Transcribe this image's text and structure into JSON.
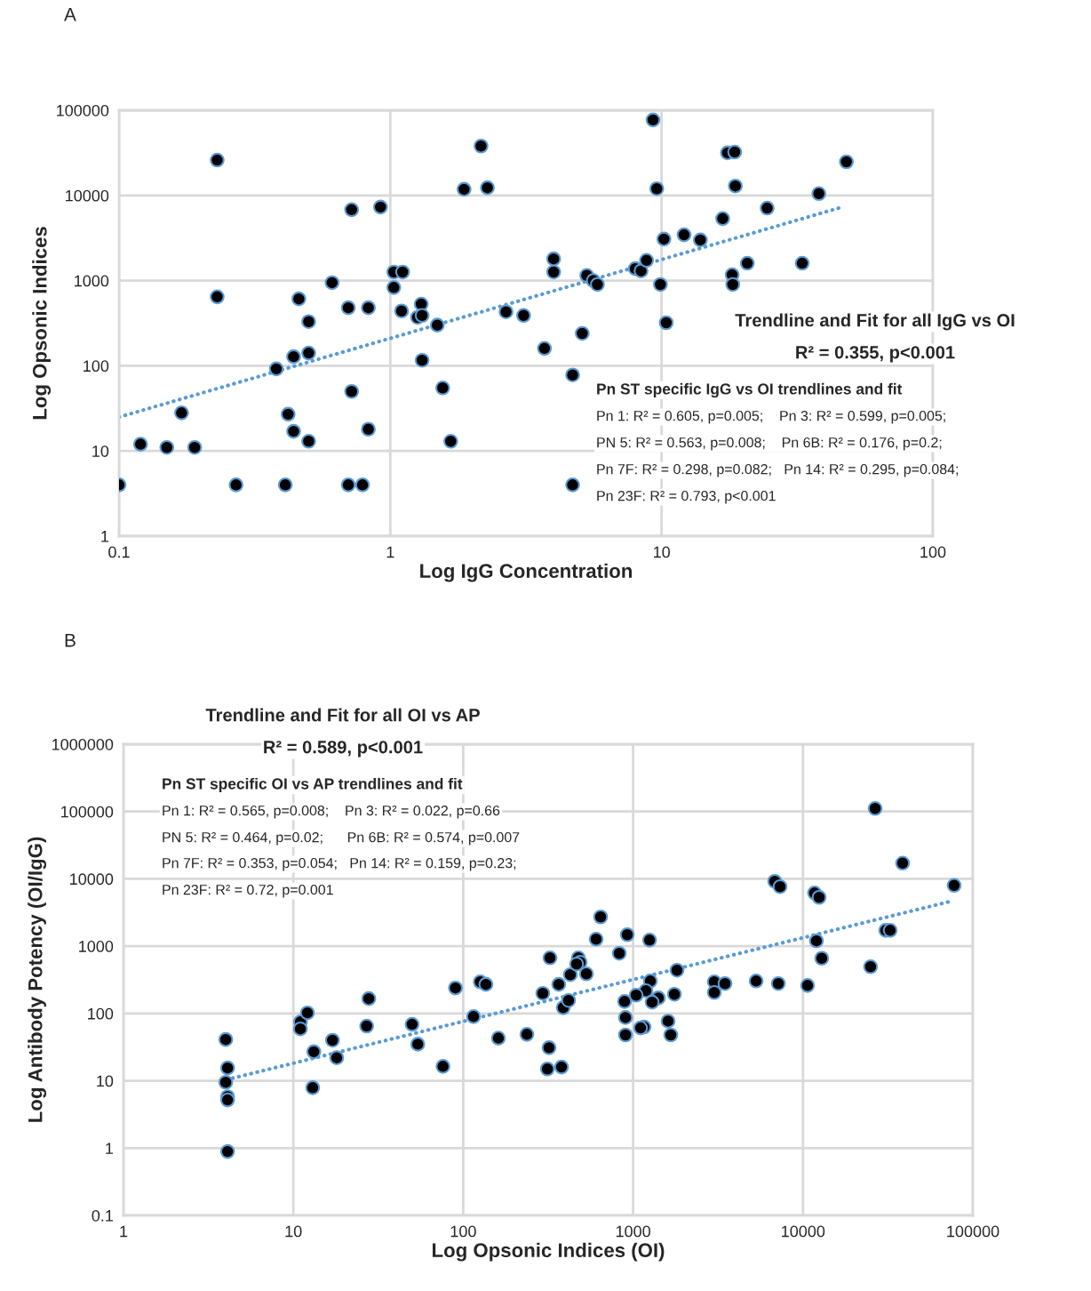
{
  "chart_data": [
    {
      "type": "scatter",
      "title": "A",
      "xlabel": "Log IgG Concentration",
      "ylabel": "Log Opsonic Indices",
      "log": "xy",
      "grid": true,
      "xlim": [
        0.1,
        100
      ],
      "xticks": [
        0.1,
        1,
        10,
        100
      ],
      "ylim": [
        1,
        100000
      ],
      "yticks": [
        1,
        10,
        100,
        1000,
        10000,
        100000
      ],
      "series": [
        {
          "marker": "circle",
          "color": "#000000",
          "x": [
            0.1,
            0.12,
            0.15,
            0.19,
            0.17,
            0.23,
            0.23,
            0.27,
            0.38,
            0.42,
            0.44,
            0.44,
            0.41,
            0.46,
            0.5,
            0.5,
            0.5,
            0.61,
            0.7,
            0.72,
            0.72,
            0.7,
            0.79,
            0.83,
            0.83,
            0.92,
            1.03,
            1.03,
            1.11,
            1.1,
            1.26,
            1.3,
            1.31,
            1.31,
            1.49,
            1.56,
            1.67,
            1.87,
            2.28,
            2.16,
            2.67,
            3.1,
            3.7,
            4.0,
            4.0,
            5.1,
            4.7,
            4.7,
            5.3,
            5.6,
            5.8,
            9.3,
            9.6,
            8.0,
            8.4,
            8.8,
            9.9,
            10.2,
            10.4,
            12.1,
            13.9,
            16.8,
            17.5,
            18.6,
            18.7,
            18.2,
            18.3,
            20.7,
            24.5,
            33,
            38,
            48
          ],
          "values": [
            4,
            12,
            11,
            11,
            28,
            26000,
            645,
            4,
            92,
            27,
            128,
            17,
            4,
            610,
            330,
            141,
            13,
            945,
            480,
            6800,
            50,
            4,
            4,
            480,
            18,
            7300,
            1260,
            830,
            1260,
            440,
            370,
            530,
            390,
            116,
            300,
            55,
            13,
            11800,
            12300,
            38000,
            430,
            390,
            160,
            1800,
            1260,
            240,
            78,
            4,
            1150,
            1000,
            900,
            77000,
            12000,
            1380,
            1300,
            1730,
            900,
            3070,
            320,
            3450,
            3000,
            5350,
            31600,
            32300,
            12900,
            1170,
            900,
            1600,
            7100,
            1600,
            10500,
            24800
          ]
        },
        {
          "type": "line",
          "marker": "none",
          "color": "#5b9bd5",
          "line_style": "dotted",
          "x": [
            0.1,
            47
          ],
          "values": [
            25,
            7400
          ]
        }
      ],
      "annotations": [
        "Trendline and Fit for all IgG vs OI",
        "R² = 0.355, p<0.001",
        "Pn ST specific IgG vs OI trendlines and fit",
        "Pn 1: R² = 0.605, p=0.005;    Pn 3: R² = 0.599, p=0.005;",
        "PN 5: R² = 0.563, p=0.008;    Pn 6B: R² = 0.176, p=0.2;",
        "Pn 7F: R² = 0.298, p=0.082;   Pn 14: R² = 0.295, p=0.084;",
        "Pn 23F: R² = 0.793, p<0.001"
      ]
    },
    {
      "type": "scatter",
      "title": "B",
      "xlabel": "Log Opsonic Indices (OI)",
      "ylabel": "Log Antibody Potency (OI/IgG)",
      "log": "xy",
      "grid": true,
      "xlim": [
        1,
        100000
      ],
      "xticks": [
        1,
        10,
        100,
        1000,
        10000,
        100000
      ],
      "ylim": [
        0.1,
        1000000
      ],
      "yticks": [
        0.1,
        1,
        10,
        100,
        1000,
        10000,
        100000,
        1000000
      ],
      "series": [
        {
          "marker": "circle",
          "color": "#000000",
          "x": [
            4.0,
            4.1,
            4.0,
            4.1,
            4.1,
            4.1,
            11,
            11,
            12.1,
            13.2,
            13,
            17,
            18,
            27.8,
            27,
            50,
            54,
            76,
            90,
            126,
            136,
            115,
            161,
            237,
            294,
            324,
            320,
            313,
            379,
            365,
            427,
            388,
            417,
            476,
            488,
            465,
            531,
            644,
            606,
            829,
            924,
            1250,
            1263,
            1190,
            1042,
            891,
            902,
            902,
            1160,
            1107,
            1408,
            1294,
            1750,
            1607,
            1667,
            1813,
            3006,
            3006,
            3475,
            5300,
            7160,
            10640,
            6820,
            7330,
            11700,
            12450,
            12000,
            12900,
            25000,
            26600,
            38600,
            30700,
            32600,
            77600
          ],
          "values": [
            41,
            15.5,
            9.5,
            5.8,
            5.2,
            0.89,
            75,
            59,
            102,
            27,
            7.9,
            40,
            22,
            166,
            65,
            69,
            35,
            16.4,
            239,
            295,
            270,
            90,
            43,
            49,
            199,
            671,
            31,
            15,
            16,
            270,
            377,
            122,
            156,
            671,
            576,
            542,
            388,
            2720,
            1270,
            782,
            1480,
            1230,
            304,
            218,
            187,
            151,
            87,
            48,
            63,
            61,
            170,
            147,
            193,
            77,
            48,
            439,
            295,
            205,
            278,
            304,
            278,
            261,
            9180,
            7650,
            6170,
            5310,
            1200,
            661,
            495,
            111000,
            17100,
            1720,
            1720,
            8000
          ]
        },
        {
          "type": "line",
          "marker": "none",
          "color": "#5b9bd5",
          "line_style": "dotted",
          "x": [
            4.04,
            75800
          ],
          "values": [
            10.4,
            4700
          ]
        }
      ],
      "annotations": [
        "Trendline and Fit for all OI vs AP",
        "R² = 0.589, p<0.001",
        "Pn ST specific OI vs AP trendlines and fit",
        "Pn 1: R² = 0.565, p=0.008;    Pn 3: R² = 0.022, p=0.66",
        "PN 5: R² = 0.464, p=0.02;      Pn 6B: R² = 0.574, p=0.007",
        "Pn 7F: R² = 0.353, p=0.054;   Pn 14: R² = 0.159, p=0.23;",
        "Pn 23F: R² = 0.72, p=0.001"
      ]
    }
  ]
}
